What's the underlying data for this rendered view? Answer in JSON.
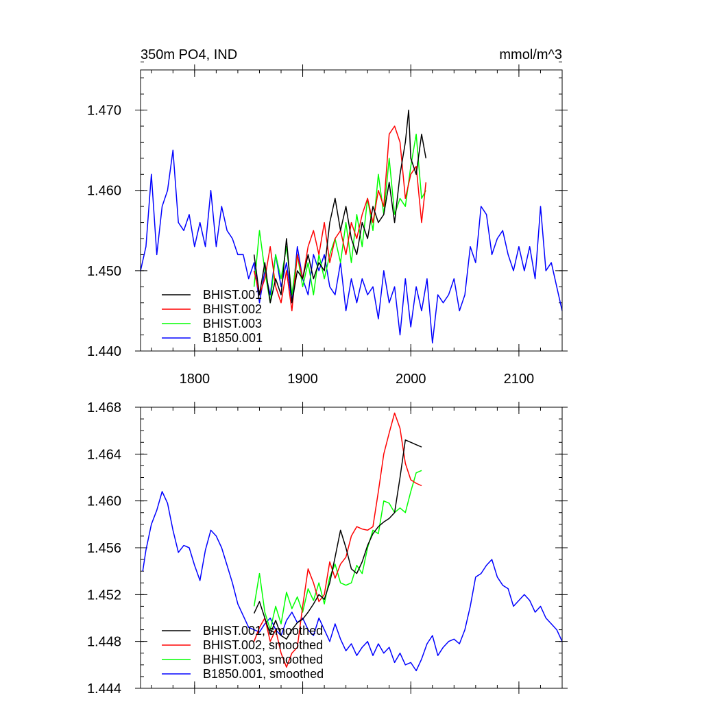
{
  "chart_data": [
    {
      "type": "line",
      "title": "350m PO4, IND",
      "units": "mmol/m^3",
      "xlim": [
        1750,
        2140
      ],
      "ylim": [
        1.44,
        1.475
      ],
      "xticks": [
        1800,
        1900,
        2000,
        2100
      ],
      "xtick_labels": [
        "1800",
        "1900",
        "2000",
        "2100"
      ],
      "yticks": [
        1.44,
        1.45,
        1.46,
        1.47
      ],
      "ytick_labels": [
        "1.440",
        "1.450",
        "1.460",
        "1.470"
      ],
      "grid": false,
      "legend_position": "bottom-left",
      "series": [
        {
          "name": "BHIST.001",
          "color": "#000000",
          "x": [
            1855,
            1860,
            1865,
            1870,
            1875,
            1880,
            1885,
            1890,
            1895,
            1900,
            1905,
            1910,
            1915,
            1920,
            1925,
            1930,
            1935,
            1940,
            1945,
            1950,
            1955,
            1960,
            1965,
            1970,
            1975,
            1980,
            1985,
            1990,
            1995,
            1998,
            2000,
            2005,
            2010,
            2014
          ],
          "y": [
            1.452,
            1.447,
            1.451,
            1.446,
            1.449,
            1.447,
            1.454,
            1.446,
            1.45,
            1.449,
            1.452,
            1.449,
            1.451,
            1.45,
            1.456,
            1.459,
            1.455,
            1.458,
            1.454,
            1.452,
            1.456,
            1.454,
            1.458,
            1.456,
            1.457,
            1.461,
            1.456,
            1.462,
            1.466,
            1.47,
            1.464,
            1.462,
            1.467,
            1.464
          ]
        },
        {
          "name": "BHIST.002",
          "color": "#ff0000",
          "x": [
            1855,
            1860,
            1865,
            1870,
            1875,
            1880,
            1885,
            1890,
            1895,
            1900,
            1905,
            1910,
            1915,
            1920,
            1925,
            1930,
            1935,
            1940,
            1945,
            1950,
            1955,
            1960,
            1965,
            1970,
            1975,
            1980,
            1985,
            1990,
            1995,
            2000,
            2005,
            2010,
            2014
          ],
          "y": [
            1.45,
            1.447,
            1.449,
            1.453,
            1.448,
            1.446,
            1.45,
            1.445,
            1.452,
            1.449,
            1.453,
            1.455,
            1.452,
            1.456,
            1.451,
            1.454,
            1.455,
            1.452,
            1.456,
            1.454,
            1.457,
            1.459,
            1.456,
            1.46,
            1.458,
            1.467,
            1.468,
            1.466,
            1.459,
            1.462,
            1.463,
            1.456,
            1.461
          ]
        },
        {
          "name": "BHIST.003",
          "color": "#00ff00",
          "x": [
            1855,
            1860,
            1865,
            1870,
            1875,
            1880,
            1885,
            1890,
            1895,
            1900,
            1905,
            1910,
            1915,
            1920,
            1925,
            1930,
            1935,
            1940,
            1945,
            1950,
            1955,
            1960,
            1965,
            1970,
            1975,
            1980,
            1985,
            1990,
            1995,
            2000,
            2005,
            2010,
            2014
          ],
          "y": [
            1.448,
            1.455,
            1.45,
            1.446,
            1.452,
            1.449,
            1.453,
            1.447,
            1.452,
            1.448,
            1.451,
            1.447,
            1.452,
            1.449,
            1.452,
            1.454,
            1.451,
            1.456,
            1.451,
            1.457,
            1.453,
            1.459,
            1.455,
            1.462,
            1.457,
            1.464,
            1.457,
            1.459,
            1.458,
            1.463,
            1.467,
            1.459,
            1.46
          ]
        },
        {
          "name": "B1850.001",
          "color": "#0000ff",
          "x": [
            1750,
            1755,
            1760,
            1765,
            1770,
            1775,
            1780,
            1785,
            1790,
            1795,
            1800,
            1805,
            1810,
            1815,
            1820,
            1825,
            1830,
            1835,
            1840,
            1845,
            1850,
            1855,
            1860,
            1865,
            1870,
            1875,
            1880,
            1885,
            1890,
            1895,
            1900,
            1905,
            1910,
            1915,
            1920,
            1925,
            1930,
            1935,
            1940,
            1945,
            1950,
            1955,
            1960,
            1965,
            1970,
            1975,
            1980,
            1985,
            1990,
            1995,
            2000,
            2005,
            2010,
            2015,
            2020,
            2025,
            2030,
            2035,
            2040,
            2045,
            2050,
            2055,
            2060,
            2065,
            2070,
            2075,
            2080,
            2085,
            2090,
            2095,
            2100,
            2105,
            2110,
            2115,
            2120,
            2125,
            2130,
            2135,
            2140
          ],
          "y": [
            1.45,
            1.453,
            1.462,
            1.452,
            1.458,
            1.46,
            1.465,
            1.456,
            1.455,
            1.457,
            1.453,
            1.456,
            1.453,
            1.46,
            1.453,
            1.458,
            1.455,
            1.454,
            1.452,
            1.452,
            1.449,
            1.451,
            1.446,
            1.45,
            1.447,
            1.452,
            1.448,
            1.451,
            1.446,
            1.453,
            1.449,
            1.447,
            1.452,
            1.45,
            1.452,
            1.448,
            1.447,
            1.451,
            1.445,
            1.449,
            1.446,
            1.449,
            1.447,
            1.448,
            1.444,
            1.45,
            1.446,
            1.448,
            1.442,
            1.449,
            1.443,
            1.448,
            1.445,
            1.449,
            1.441,
            1.447,
            1.446,
            1.447,
            1.449,
            1.445,
            1.447,
            1.453,
            1.451,
            1.458,
            1.457,
            1.452,
            1.454,
            1.455,
            1.452,
            1.45,
            1.453,
            1.45,
            1.453,
            1.449,
            1.458,
            1.45,
            1.451,
            1.448,
            1.445
          ]
        }
      ]
    },
    {
      "type": "line",
      "title": "",
      "xlim": [
        1750,
        2140
      ],
      "ylim": [
        1.444,
        1.468
      ],
      "xticks": [
        1800,
        1900,
        2000,
        2100
      ],
      "xtick_labels": [
        "",
        "",
        "",
        ""
      ],
      "yticks": [
        1.444,
        1.448,
        1.452,
        1.456,
        1.46,
        1.464,
        1.468
      ],
      "ytick_labels": [
        "1.444",
        "1.448",
        "1.452",
        "1.456",
        "1.460",
        "1.464",
        "1.468"
      ],
      "grid": false,
      "legend_position": "bottom-left",
      "series": [
        {
          "name": "BHIST.001, smoothed",
          "color": "#000000",
          "x": [
            1855,
            1860,
            1865,
            1870,
            1875,
            1880,
            1885,
            1890,
            1895,
            1900,
            1905,
            1910,
            1915,
            1920,
            1925,
            1930,
            1935,
            1940,
            1945,
            1950,
            1955,
            1960,
            1965,
            1970,
            1975,
            1980,
            1985,
            1990,
            1995,
            2000,
            2005,
            2010
          ],
          "y": [
            1.4504,
            1.4514,
            1.45,
            1.4486,
            1.4498,
            1.4485,
            1.4482,
            1.449,
            1.4496,
            1.4499,
            1.4505,
            1.4512,
            1.452,
            1.4516,
            1.453,
            1.4552,
            1.4575,
            1.456,
            1.4542,
            1.4538,
            1.4548,
            1.4562,
            1.4572,
            1.4578,
            1.4582,
            1.4585,
            1.459,
            1.462,
            1.4652,
            1.465,
            1.4648,
            1.4646
          ]
        },
        {
          "name": "BHIST.002, smoothed",
          "color": "#ff0000",
          "x": [
            1855,
            1860,
            1865,
            1870,
            1875,
            1880,
            1885,
            1890,
            1895,
            1900,
            1905,
            1910,
            1915,
            1920,
            1925,
            1930,
            1935,
            1940,
            1945,
            1950,
            1955,
            1960,
            1965,
            1970,
            1975,
            1980,
            1985,
            1990,
            1995,
            2000,
            2005,
            2010
          ],
          "y": [
            1.448,
            1.4492,
            1.45,
            1.448,
            1.449,
            1.447,
            1.4458,
            1.447,
            1.4475,
            1.451,
            1.4542,
            1.453,
            1.4514,
            1.452,
            1.4548,
            1.4534,
            1.4546,
            1.4552,
            1.457,
            1.4578,
            1.4576,
            1.4575,
            1.4578,
            1.4608,
            1.464,
            1.4658,
            1.4675,
            1.4662,
            1.4632,
            1.4618,
            1.4615,
            1.4613
          ]
        },
        {
          "name": "BHIST.003, smoothed",
          "color": "#00ff00",
          "x": [
            1855,
            1860,
            1865,
            1870,
            1875,
            1880,
            1885,
            1890,
            1895,
            1900,
            1905,
            1910,
            1915,
            1920,
            1925,
            1930,
            1935,
            1940,
            1945,
            1950,
            1955,
            1960,
            1965,
            1970,
            1975,
            1980,
            1985,
            1990,
            1995,
            2000,
            2005,
            2010
          ],
          "y": [
            1.451,
            1.4538,
            1.4505,
            1.449,
            1.451,
            1.4495,
            1.4522,
            1.4508,
            1.4518,
            1.4505,
            1.4525,
            1.4515,
            1.453,
            1.4512,
            1.4535,
            1.4546,
            1.453,
            1.4528,
            1.453,
            1.4545,
            1.4538,
            1.456,
            1.4575,
            1.4572,
            1.46,
            1.4598,
            1.459,
            1.4594,
            1.459,
            1.4608,
            1.4624,
            1.4626
          ]
        },
        {
          "name": "B1850.001, smoothed",
          "color": "#0000ff",
          "x": [
            1752,
            1755,
            1760,
            1765,
            1770,
            1775,
            1780,
            1785,
            1790,
            1795,
            1800,
            1805,
            1810,
            1815,
            1820,
            1825,
            1830,
            1835,
            1840,
            1845,
            1850,
            1855,
            1860,
            1865,
            1870,
            1875,
            1880,
            1885,
            1890,
            1895,
            1900,
            1905,
            1910,
            1915,
            1920,
            1925,
            1930,
            1935,
            1940,
            1945,
            1950,
            1955,
            1960,
            1965,
            1970,
            1975,
            1980,
            1985,
            1990,
            1995,
            2000,
            2005,
            2010,
            2015,
            2020,
            2025,
            2030,
            2035,
            2040,
            2045,
            2050,
            2055,
            2060,
            2065,
            2070,
            2075,
            2080,
            2085,
            2090,
            2095,
            2100,
            2105,
            2110,
            2115,
            2120,
            2125,
            2130,
            2135,
            2140
          ],
          "y": [
            1.454,
            1.4558,
            1.458,
            1.4592,
            1.4608,
            1.4598,
            1.4575,
            1.4556,
            1.4562,
            1.456,
            1.4545,
            1.4532,
            1.4558,
            1.4575,
            1.457,
            1.456,
            1.4545,
            1.453,
            1.4512,
            1.4502,
            1.4492,
            1.449,
            1.4488,
            1.4495,
            1.45,
            1.449,
            1.4485,
            1.4498,
            1.4505,
            1.4496,
            1.45,
            1.449,
            1.4485,
            1.45,
            1.449,
            1.448,
            1.4495,
            1.4482,
            1.4472,
            1.4478,
            1.4468,
            1.4475,
            1.448,
            1.4468,
            1.4478,
            1.447,
            1.4475,
            1.4462,
            1.447,
            1.446,
            1.4462,
            1.4455,
            1.4465,
            1.4478,
            1.4485,
            1.4468,
            1.4475,
            1.448,
            1.4482,
            1.4478,
            1.449,
            1.451,
            1.4535,
            1.4538,
            1.4545,
            1.455,
            1.4535,
            1.4528,
            1.4525,
            1.451,
            1.4515,
            1.452,
            1.4515,
            1.4505,
            1.451,
            1.45,
            1.4495,
            1.449,
            1.448
          ]
        }
      ]
    }
  ]
}
